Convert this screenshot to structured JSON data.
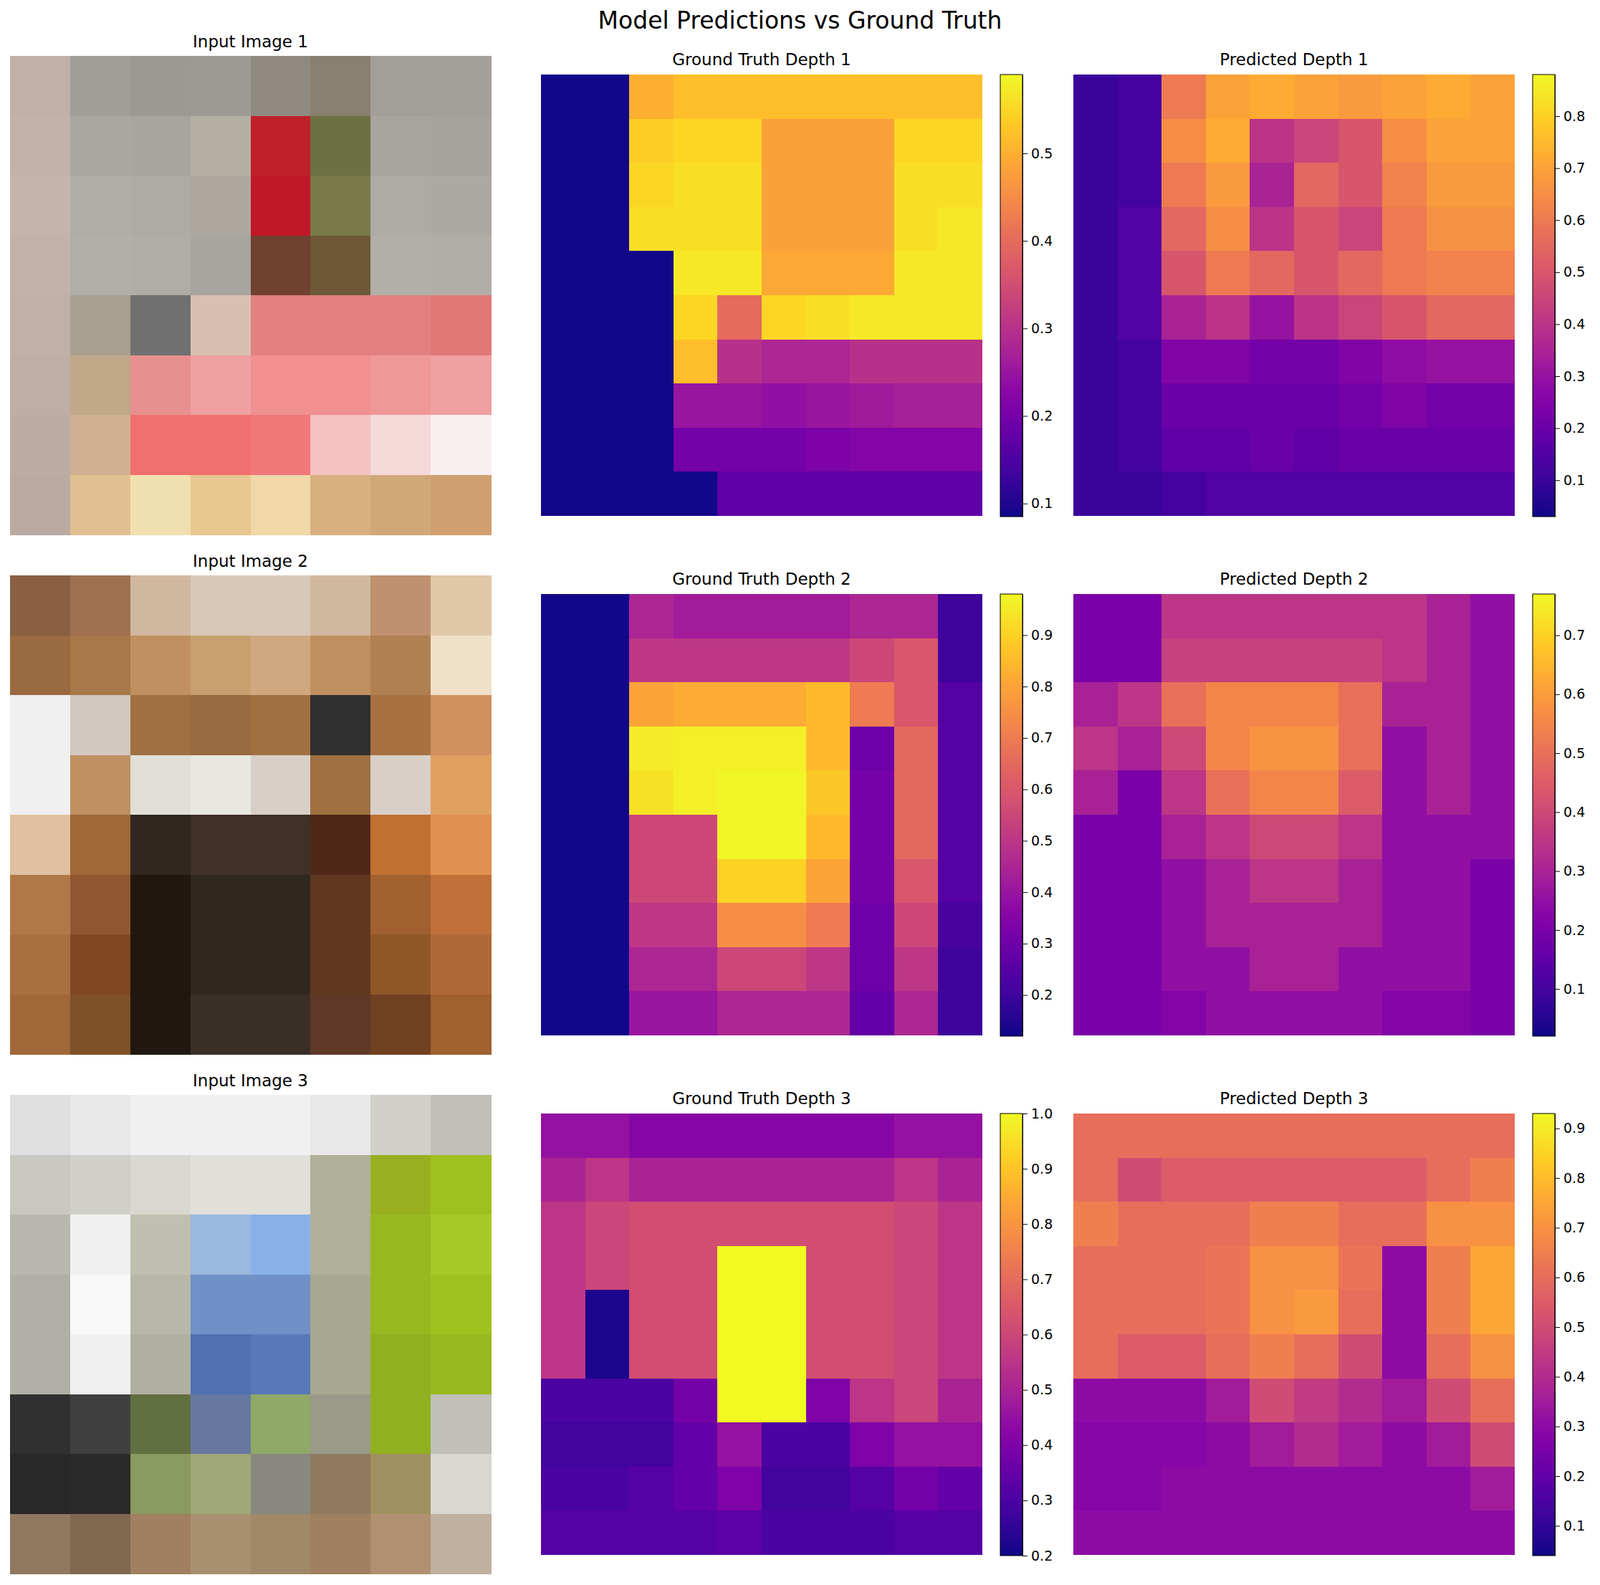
{
  "chart_data": {
    "type": "figure",
    "title": "Model Predictions vs Ground Truth",
    "panels": [
      {
        "type": "image",
        "title": "Input Image 1",
        "colors": [
          [
            "#c0b0a8",
            "#a19e9a",
            "#9c9893",
            "#9e9a94",
            "#8e8a80",
            "#8a8070",
            "#a29e98",
            "#a39f99"
          ],
          [
            "#c2b2aa",
            "#aaa6a0",
            "#a8a49e",
            "#b5b0a4",
            "#c0202a",
            "#6d7040",
            "#a8a49e",
            "#a6a29c"
          ],
          [
            "#c4b4ac",
            "#b0aca6",
            "#aeaaa4",
            "#aca8a0",
            "#c01828",
            "#777a48",
            "#aeaaa4",
            "#aca8a2"
          ],
          [
            "#c2b2aa",
            "#b2aea8",
            "#b0aca6",
            "#a8a4a0",
            "#704030",
            "#6e5838",
            "#b2aea8",
            "#b0aca6"
          ],
          [
            "#c0b0a8",
            "#aaa090",
            "#707070",
            "#d8c0b0",
            "#e08080",
            "#e08080",
            "#e08080",
            "#e07878"
          ],
          [
            "#beaea6",
            "#c0a888",
            "#e89090",
            "#f0a0a0",
            "#f09090",
            "#f09090",
            "#f09898",
            "#f0a0a0"
          ],
          [
            "#bcaca4",
            "#d0b090",
            "#f07070",
            "#f07070",
            "#f07878",
            "#f5c0c0",
            "#f5d8d8",
            "#f8f0f0"
          ],
          [
            "#baaaa2",
            "#e0c090",
            "#f0e0b0",
            "#e8c890",
            "#f0d8a8",
            "#d8b080",
            "#d0a878",
            "#d0a070"
          ]
        ]
      },
      {
        "type": "heatmap",
        "title": "Ground Truth Depth 1",
        "color": "plasma",
        "color_range": [
          0.085,
          0.59
        ],
        "color_ticks": [
          0.1,
          0.2,
          0.3,
          0.4,
          0.5
        ],
        "cells": [
          [
            0.09,
            0.09,
            0.5,
            0.52,
            0.52,
            0.52,
            0.52,
            0.52,
            0.52,
            0.52
          ],
          [
            0.09,
            0.09,
            0.54,
            0.55,
            0.55,
            0.48,
            0.48,
            0.48,
            0.55,
            0.55
          ],
          [
            0.09,
            0.09,
            0.55,
            0.56,
            0.56,
            0.48,
            0.48,
            0.48,
            0.56,
            0.56
          ],
          [
            0.09,
            0.09,
            0.56,
            0.56,
            0.56,
            0.48,
            0.48,
            0.48,
            0.56,
            0.57
          ],
          [
            0.09,
            0.09,
            0.09,
            0.57,
            0.57,
            0.49,
            0.49,
            0.49,
            0.57,
            0.57
          ],
          [
            0.09,
            0.09,
            0.09,
            0.55,
            0.4,
            0.55,
            0.56,
            0.57,
            0.57,
            0.57
          ],
          [
            0.09,
            0.09,
            0.09,
            0.52,
            0.3,
            0.28,
            0.28,
            0.3,
            0.3,
            0.3
          ],
          [
            0.09,
            0.09,
            0.09,
            0.25,
            0.25,
            0.24,
            0.25,
            0.26,
            0.27,
            0.27
          ],
          [
            0.09,
            0.09,
            0.09,
            0.2,
            0.2,
            0.2,
            0.21,
            0.22,
            0.22,
            0.22
          ],
          [
            0.09,
            0.09,
            0.09,
            0.09,
            0.17,
            0.17,
            0.17,
            0.17,
            0.17,
            0.17
          ]
        ]
      },
      {
        "type": "heatmap",
        "title": "Predicted Depth 1",
        "color": "plasma",
        "color_range": [
          0.03,
          0.88
        ],
        "color_ticks": [
          0.1,
          0.2,
          0.3,
          0.4,
          0.5,
          0.6,
          0.7,
          0.8
        ],
        "cells": [
          [
            0.1,
            0.12,
            0.6,
            0.7,
            0.72,
            0.7,
            0.68,
            0.7,
            0.72,
            0.7
          ],
          [
            0.1,
            0.12,
            0.65,
            0.72,
            0.4,
            0.45,
            0.5,
            0.65,
            0.7,
            0.7
          ],
          [
            0.1,
            0.12,
            0.6,
            0.68,
            0.35,
            0.55,
            0.5,
            0.62,
            0.68,
            0.68
          ],
          [
            0.1,
            0.15,
            0.55,
            0.65,
            0.4,
            0.5,
            0.45,
            0.6,
            0.66,
            0.66
          ],
          [
            0.1,
            0.15,
            0.5,
            0.6,
            0.55,
            0.5,
            0.55,
            0.6,
            0.62,
            0.62
          ],
          [
            0.1,
            0.15,
            0.35,
            0.4,
            0.3,
            0.4,
            0.45,
            0.5,
            0.55,
            0.55
          ],
          [
            0.1,
            0.12,
            0.25,
            0.25,
            0.22,
            0.22,
            0.25,
            0.28,
            0.3,
            0.3
          ],
          [
            0.1,
            0.12,
            0.2,
            0.2,
            0.2,
            0.2,
            0.22,
            0.25,
            0.22,
            0.22
          ],
          [
            0.1,
            0.12,
            0.18,
            0.18,
            0.2,
            0.18,
            0.2,
            0.2,
            0.2,
            0.2
          ],
          [
            0.1,
            0.1,
            0.12,
            0.15,
            0.15,
            0.15,
            0.15,
            0.15,
            0.15,
            0.15
          ]
        ]
      },
      {
        "type": "image",
        "title": "Input Image 2",
        "colors": [
          [
            "#8a6040",
            "#a07050",
            "#d0b8a0",
            "#d8c8b8",
            "#d8c8b8",
            "#d0b8a0",
            "#c09070",
            "#e0c8a8"
          ],
          [
            "#9a6a40",
            "#a87848",
            "#c09060",
            "#c8a070",
            "#d0a880",
            "#c09060",
            "#b08050",
            "#f0e0c8"
          ],
          [
            "#f0f0f0",
            "#d0c8c0",
            "#a07040",
            "#9a6a40",
            "#a07040",
            "#303030",
            "#a87040",
            "#d09060"
          ],
          [
            "#f0f0f0",
            "#c09060",
            "#e0e0d8",
            "#e8e8e0",
            "#d8d0c8",
            "#a07040",
            "#d8d0c8",
            "#e0a060"
          ],
          [
            "#e0c0a0",
            "#a06838",
            "#302820",
            "#403028",
            "#403028",
            "#502818",
            "#c07030",
            "#e09050"
          ],
          [
            "#b07848",
            "#905830",
            "#201810",
            "#302820",
            "#302820",
            "#603820",
            "#a06030",
            "#c07038"
          ],
          [
            "#a87040",
            "#804820",
            "#201810",
            "#302820",
            "#302820",
            "#603820",
            "#905828",
            "#b06838"
          ],
          [
            "#a06838",
            "#805028",
            "#201810",
            "#3a3028",
            "#3a3028",
            "#603828",
            "#704020",
            "#a06030"
          ]
        ]
      },
      {
        "type": "heatmap",
        "title": "Ground Truth Depth 2",
        "color": "plasma",
        "color_range": [
          0.12,
          0.98
        ],
        "color_ticks": [
          0.2,
          0.3,
          0.4,
          0.5,
          0.6,
          0.7,
          0.8,
          0.9
        ],
        "cells": [
          [
            0.13,
            0.13,
            0.45,
            0.42,
            0.42,
            0.42,
            0.42,
            0.45,
            0.45,
            0.2
          ],
          [
            0.13,
            0.13,
            0.5,
            0.5,
            0.5,
            0.5,
            0.5,
            0.55,
            0.6,
            0.2
          ],
          [
            0.13,
            0.13,
            0.8,
            0.82,
            0.82,
            0.82,
            0.85,
            0.7,
            0.6,
            0.25
          ],
          [
            0.13,
            0.13,
            0.95,
            0.96,
            0.96,
            0.96,
            0.85,
            0.3,
            0.65,
            0.25
          ],
          [
            0.13,
            0.13,
            0.93,
            0.96,
            0.97,
            0.97,
            0.88,
            0.32,
            0.65,
            0.25
          ],
          [
            0.13,
            0.13,
            0.55,
            0.55,
            0.97,
            0.97,
            0.85,
            0.32,
            0.65,
            0.25
          ],
          [
            0.13,
            0.13,
            0.55,
            0.55,
            0.9,
            0.9,
            0.8,
            0.32,
            0.6,
            0.25
          ],
          [
            0.13,
            0.13,
            0.5,
            0.5,
            0.75,
            0.75,
            0.7,
            0.3,
            0.55,
            0.22
          ],
          [
            0.13,
            0.13,
            0.45,
            0.45,
            0.55,
            0.55,
            0.5,
            0.3,
            0.5,
            0.2
          ],
          [
            0.13,
            0.13,
            0.4,
            0.4,
            0.45,
            0.45,
            0.45,
            0.28,
            0.45,
            0.2
          ]
        ]
      },
      {
        "type": "heatmap",
        "title": "Predicted Depth 2",
        "color": "plasma",
        "color_range": [
          0.02,
          0.77
        ],
        "color_ticks": [
          0.1,
          0.2,
          0.3,
          0.4,
          0.5,
          0.6,
          0.7
        ],
        "cells": [
          [
            0.2,
            0.2,
            0.35,
            0.35,
            0.35,
            0.35,
            0.35,
            0.35,
            0.3,
            0.25
          ],
          [
            0.2,
            0.2,
            0.38,
            0.38,
            0.38,
            0.38,
            0.38,
            0.35,
            0.3,
            0.25
          ],
          [
            0.3,
            0.35,
            0.5,
            0.55,
            0.55,
            0.55,
            0.5,
            0.3,
            0.3,
            0.25
          ],
          [
            0.35,
            0.3,
            0.4,
            0.55,
            0.58,
            0.58,
            0.5,
            0.25,
            0.3,
            0.25
          ],
          [
            0.3,
            0.2,
            0.35,
            0.5,
            0.55,
            0.55,
            0.45,
            0.25,
            0.3,
            0.25
          ],
          [
            0.2,
            0.2,
            0.3,
            0.35,
            0.4,
            0.4,
            0.35,
            0.25,
            0.25,
            0.25
          ],
          [
            0.2,
            0.2,
            0.25,
            0.3,
            0.35,
            0.35,
            0.3,
            0.25,
            0.25,
            0.2
          ],
          [
            0.2,
            0.2,
            0.25,
            0.3,
            0.3,
            0.3,
            0.3,
            0.25,
            0.25,
            0.2
          ],
          [
            0.2,
            0.2,
            0.25,
            0.25,
            0.3,
            0.3,
            0.25,
            0.25,
            0.25,
            0.2
          ],
          [
            0.2,
            0.2,
            0.22,
            0.25,
            0.25,
            0.25,
            0.25,
            0.22,
            0.22,
            0.2
          ]
        ]
      },
      {
        "type": "image",
        "title": "Input Image 3",
        "colors": [
          [
            "#e0e0e0",
            "#e8e8e8",
            "#f0f0f0",
            "#f0f0f0",
            "#f0f0f0",
            "#e8e8e8",
            "#d0d0c8",
            "#c0c0b8"
          ],
          [
            "#c8c8c0",
            "#d0d0c8",
            "#d8d8d0",
            "#e0e0d8",
            "#e0e0d8",
            "#b0b098",
            "#98b020",
            "#a0c020"
          ],
          [
            "#b8b8b0",
            "#f0f0f0",
            "#c0c0b0",
            "#9ab8e0",
            "#8ab0e8",
            "#b0b098",
            "#98b820",
            "#a8c828"
          ],
          [
            "#b0b0a8",
            "#f8f8f8",
            "#b8b8a8",
            "#7090c8",
            "#7090c8",
            "#a8a890",
            "#98b820",
            "#a0c020"
          ],
          [
            "#b0b0a8",
            "#f0f0f0",
            "#b0b0a0",
            "#5070b0",
            "#5878b8",
            "#a8a890",
            "#90b020",
            "#98b820"
          ],
          [
            "#303030",
            "#404040",
            "#607040",
            "#6878a0",
            "#90a868",
            "#9a9a88",
            "#90b020",
            "#c0c0b8"
          ],
          [
            "#282828",
            "#2a2a2a",
            "#8a9a60",
            "#a0a878",
            "#888880",
            "#907860",
            "#a09060",
            "#d8d8d0"
          ],
          [
            "#907860",
            "#806850",
            "#a08060",
            "#a89070",
            "#a08868",
            "#a08060",
            "#b09070",
            "#c0b0a0"
          ]
        ]
      },
      {
        "type": "heatmap",
        "title": "Ground Truth Depth 3",
        "color": "plasma",
        "color_range": [
          0.2,
          1.0
        ],
        "color_ticks": [
          0.2,
          0.3,
          0.4,
          0.5,
          0.6,
          0.7,
          0.8,
          0.9,
          {
            "value": 1.0,
            "label": "1.0"
          }
        ],
        "cells": [
          [
            0.45,
            0.45,
            0.42,
            0.42,
            0.42,
            0.42,
            0.42,
            0.42,
            0.45,
            0.45
          ],
          [
            0.5,
            0.55,
            0.5,
            0.5,
            0.5,
            0.5,
            0.5,
            0.5,
            0.55,
            0.5
          ],
          [
            0.55,
            0.6,
            0.62,
            0.62,
            0.62,
            0.62,
            0.62,
            0.62,
            0.6,
            0.55
          ],
          [
            0.55,
            0.6,
            0.62,
            0.62,
            1.0,
            1.0,
            0.62,
            0.62,
            0.6,
            0.55
          ],
          [
            0.55,
            0.22,
            0.62,
            0.62,
            1.0,
            1.0,
            0.62,
            0.62,
            0.6,
            0.55
          ],
          [
            0.55,
            0.22,
            0.62,
            0.62,
            1.0,
            1.0,
            0.62,
            0.62,
            0.6,
            0.55
          ],
          [
            0.3,
            0.3,
            0.3,
            0.38,
            1.0,
            1.0,
            0.4,
            0.55,
            0.6,
            0.5
          ],
          [
            0.28,
            0.28,
            0.28,
            0.35,
            0.45,
            0.3,
            0.3,
            0.4,
            0.45,
            0.45
          ],
          [
            0.3,
            0.3,
            0.32,
            0.35,
            0.4,
            0.28,
            0.28,
            0.32,
            0.38,
            0.35
          ],
          [
            0.32,
            0.32,
            0.32,
            0.32,
            0.33,
            0.3,
            0.3,
            0.3,
            0.32,
            0.32
          ]
        ]
      },
      {
        "type": "heatmap",
        "title": "Predicted Depth 3",
        "color": "plasma",
        "color_range": [
          0.04,
          0.93
        ],
        "color_ticks": [
          0.1,
          0.2,
          0.3,
          0.4,
          0.5,
          0.6,
          0.7,
          0.8,
          0.9
        ],
        "cells": [
          [
            0.6,
            0.6,
            0.6,
            0.6,
            0.6,
            0.6,
            0.6,
            0.6,
            0.6,
            0.6
          ],
          [
            0.6,
            0.5,
            0.55,
            0.55,
            0.55,
            0.55,
            0.55,
            0.55,
            0.6,
            0.65
          ],
          [
            0.65,
            0.6,
            0.6,
            0.6,
            0.65,
            0.65,
            0.6,
            0.6,
            0.7,
            0.7
          ],
          [
            0.6,
            0.6,
            0.6,
            0.62,
            0.7,
            0.7,
            0.62,
            0.3,
            0.65,
            0.75
          ],
          [
            0.6,
            0.6,
            0.6,
            0.62,
            0.7,
            0.72,
            0.6,
            0.3,
            0.65,
            0.75
          ],
          [
            0.6,
            0.55,
            0.55,
            0.6,
            0.65,
            0.6,
            0.5,
            0.3,
            0.6,
            0.7
          ],
          [
            0.3,
            0.3,
            0.3,
            0.35,
            0.5,
            0.45,
            0.4,
            0.35,
            0.5,
            0.6
          ],
          [
            0.28,
            0.28,
            0.28,
            0.3,
            0.35,
            0.4,
            0.35,
            0.3,
            0.35,
            0.5
          ],
          [
            0.28,
            0.28,
            0.3,
            0.3,
            0.3,
            0.3,
            0.3,
            0.3,
            0.3,
            0.35
          ],
          [
            0.3,
            0.3,
            0.3,
            0.3,
            0.3,
            0.3,
            0.3,
            0.3,
            0.3,
            0.3
          ]
        ]
      }
    ]
  }
}
